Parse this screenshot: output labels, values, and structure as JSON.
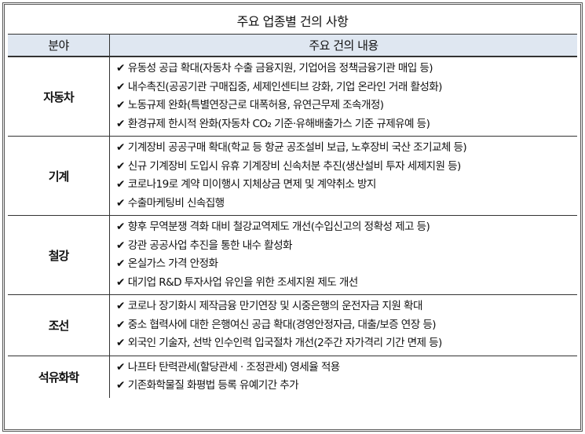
{
  "title": "주요 업종별 건의 사항",
  "header": {
    "category": "분야",
    "content": "주요 건의 내용"
  },
  "check_icon": "✔",
  "rows": [
    {
      "category": "자동차",
      "items": [
        "유동성 공급 확대(자동차 수출 금융지원, 기업어음 정책금융기관 매입 등)",
        "내수촉진(공공기관 구매집중, 세제인센티브 강화, 기업 온라인 거래 활성화)",
        "노동규제 완화(특별연장근로 대폭허용, 유연근무제 조속개정)",
        "환경규제 한시적 완화(자동차 CO₂ 기준·유해배출가스 기준 규제유예 등)"
      ]
    },
    {
      "category": "기계",
      "items": [
        "기계장비 공공구매 확대(학교 등 항균 공조설비 보급, 노후장비 국산 조기교체 등)",
        "신규 기계장비 도입시 유휴 기계장비 신속처분 추진(생산설비 투자 세제지원 등)",
        "코로나19로 계약 미이행시 지체상금 면제 및 계약취소 방지",
        "수출마케팅비 신속집행"
      ]
    },
    {
      "category": "철강",
      "items": [
        "향후 무역분쟁 격화 대비 철강교역제도 개선(수입신고의 정확성 제고 등)",
        "강관 공공사업 추진을 통한 내수 활성화",
        "온실가스 가격 안정화",
        "대기업 R&D 투자사업 유인을 위한 조세지원 제도 개선"
      ]
    },
    {
      "category": "조선",
      "items": [
        "코로나 장기화시 제작금융 만기연장 및 시중은행의 운전자금 지원 확대",
        "중소 협력사에 대한 은행여신 공급 확대(경영안정자금, 대출/보증 연장 등)",
        "외국인 기술자, 선박 인수인력 입국절차 개선(2주간 자가격리 기간 면제 등)"
      ]
    },
    {
      "category": "석유화학",
      "items": [
        "나프타 탄력관세(할당관세 · 조정관세) 영세율 적용",
        "기존화학물질 화평법 등록 유예기간 추가"
      ]
    }
  ]
}
